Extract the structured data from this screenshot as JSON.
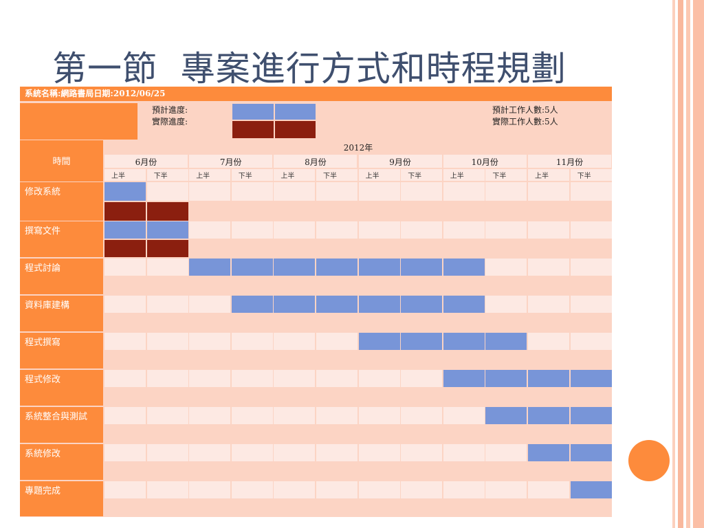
{
  "slide": {
    "title": "第一節  專案進行方式和時程規劃",
    "colors": {
      "orange": "#fd8b3c",
      "plan_blue": "#7895d8",
      "actual_red": "#8b1f0f",
      "light_cell": "#fde9e3",
      "mid_cell": "#fcd4c4",
      "title_color": "#3f4f6e"
    }
  },
  "sheet": {
    "header_bar": "系統名稱:網路書局日期:2012/06/25",
    "legend": {
      "planned_label": "預計進度:",
      "actual_label": "實際進度:",
      "planned_people": "預計工作人數:5人",
      "actual_people": "實際工作人數:5人"
    },
    "time_label": "時間",
    "year_label": "2012年",
    "months": [
      "6月份",
      "7月份",
      "8月份",
      "9月份",
      "10月份",
      "11月份"
    ],
    "halves": [
      "上半",
      "下半",
      "上半",
      "下半",
      "上半",
      "下半",
      "上半",
      "下半",
      "上半",
      "下半",
      "上半",
      "下半"
    ],
    "tasks": [
      {
        "name": "修改系統",
        "plan": [
          0
        ],
        "actual": [
          0,
          1
        ]
      },
      {
        "name": "撰寫文件",
        "plan": [
          0,
          1
        ],
        "actual": [
          0,
          1
        ]
      },
      {
        "name": "程式討論",
        "plan": [
          2,
          3,
          4,
          5,
          6,
          7,
          8
        ],
        "actual": []
      },
      {
        "name": "資料庫建構",
        "plan": [
          3,
          4,
          5,
          6,
          7,
          8
        ],
        "actual": []
      },
      {
        "name": "程式撰寫",
        "plan": [
          6,
          7,
          8,
          9
        ],
        "actual": []
      },
      {
        "name": "程式修改",
        "plan": [
          8,
          9,
          10,
          11
        ],
        "actual": []
      },
      {
        "name": "系統整合與測試",
        "plan": [
          9,
          10,
          11
        ],
        "actual": []
      },
      {
        "name": "系統修改",
        "plan": [
          10,
          11
        ],
        "actual": []
      },
      {
        "name": "專題完成",
        "plan": [
          11
        ],
        "actual": []
      }
    ]
  }
}
